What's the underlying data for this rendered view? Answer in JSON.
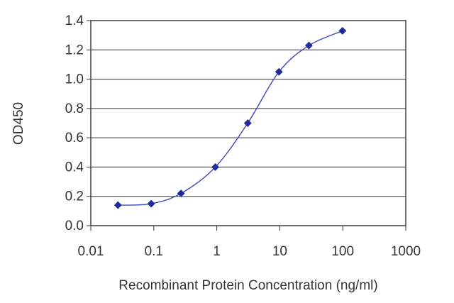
{
  "chart_data": {
    "type": "scatter",
    "title": "",
    "xlabel": "Recombinant Protein Concentration (ng/ml)",
    "ylabel": "OD450",
    "xscale": "log",
    "xlim": [
      0.01,
      1000
    ],
    "ylim": [
      0,
      1.4
    ],
    "xticks": [
      "0.01",
      "0.1",
      "1",
      "10",
      "100",
      "1000"
    ],
    "yticks": [
      "0.0",
      "0.2",
      "0.4",
      "0.6",
      "0.8",
      "1.0",
      "1.2",
      "1.4"
    ],
    "grid": "horizontal",
    "legend": "none",
    "series": [
      {
        "x": [
          0.027,
          0.091,
          0.27,
          0.95,
          3.1,
          9.7,
          29,
          99
        ],
        "y": [
          0.14,
          0.15,
          0.22,
          0.4,
          0.7,
          1.05,
          1.23,
          1.33
        ],
        "marker": "diamond",
        "line": "smooth",
        "color": "#1f2a9c"
      }
    ]
  }
}
